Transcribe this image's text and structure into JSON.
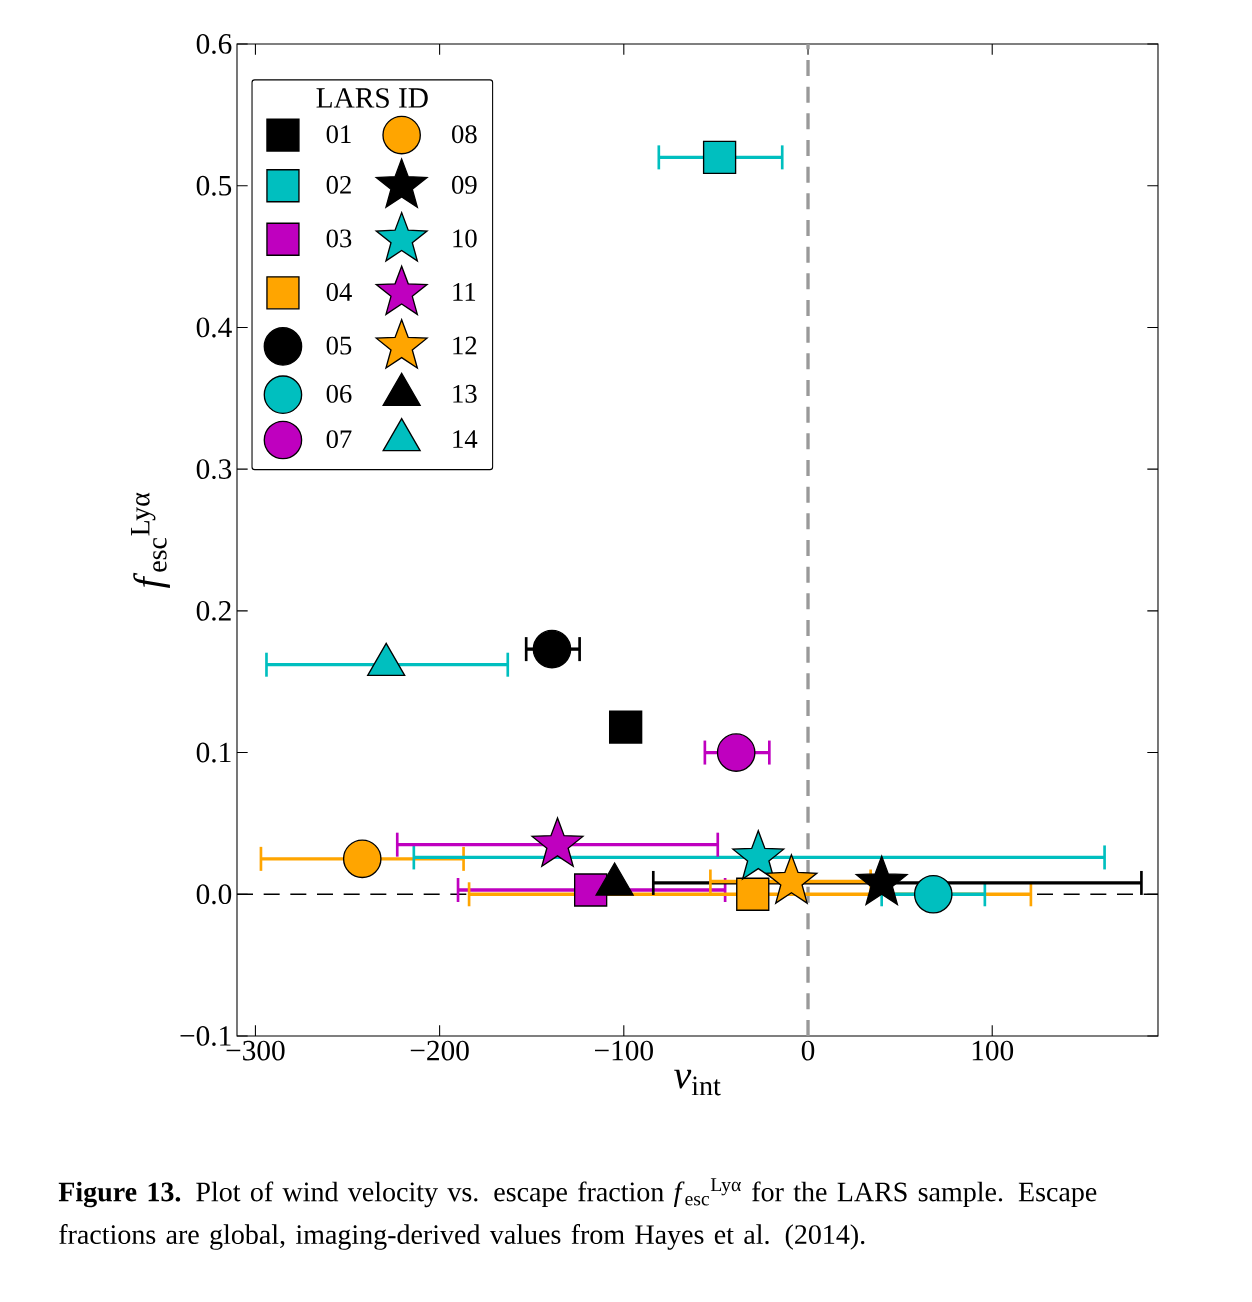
{
  "chart_data": {
    "type": "scatter",
    "xlabel": "*v*$_{int}$",
    "ylabel": "*f*$_{esc}$$^{Lyα}$",
    "legend_title": "LARS ID",
    "legend": "top left",
    "xlim": [
      -310,
      190
    ],
    "ylim": [
      -0.1,
      0.6
    ],
    "xticks": [
      {
        "value": -300,
        "label": "−300"
      },
      {
        "value": -200,
        "label": "−200"
      },
      {
        "value": -100,
        "label": "−100"
      },
      0,
      100
    ],
    "yticks": [
      {
        "value": -0.1,
        "label": "−0.1"
      },
      {
        "value": 0,
        "label": "0.0"
      },
      0.1,
      0.2,
      0.3,
      0.4,
      0.5,
      0.6
    ],
    "ref_lines": [
      {
        "axis": "x",
        "value": 0,
        "color": "#999999",
        "line_style": "dashed"
      },
      {
        "axis": "y",
        "value": 0,
        "color": "#000000",
        "line_style": "dashed"
      }
    ],
    "annotations": [
      "**Figure 13.** Plot of wind velocity vs. escape fraction *f*$_{esc}$$^{Lyα}$ for the LARS sample. Escape fractions are global, imaging-derived values from Hayes et al. (2014)."
    ],
    "series": [
      {
        "name": "01",
        "color": "#000000",
        "marker": "square",
        "x": [
          -99
        ],
        "values": [
          0.118
        ],
        "xerrors": [
          null
        ]
      },
      {
        "name": "02",
        "color": "#00bfbf",
        "marker": "square",
        "x": [
          -48
        ],
        "values": [
          0.52
        ],
        "xerrors": [
          [
            -81,
            -14
          ]
        ]
      },
      {
        "name": "03",
        "color": "#bf00bf",
        "marker": "square",
        "x": [
          -118
        ],
        "values": [
          0.003
        ],
        "xerrors": [
          [
            -190,
            -45
          ]
        ]
      },
      {
        "name": "04",
        "color": "#ffa500",
        "marker": "square",
        "x": [
          -30
        ],
        "values": [
          0.0
        ],
        "xerrors": [
          [
            -184,
            121
          ]
        ]
      },
      {
        "name": "05",
        "color": "#000000",
        "marker": "circle",
        "x": [
          -139
        ],
        "values": [
          0.173
        ],
        "xerrors": [
          [
            -153,
            -124
          ]
        ]
      },
      {
        "name": "06",
        "color": "#00bfbf",
        "marker": "circle",
        "x": [
          68
        ],
        "values": [
          0.0
        ],
        "xerrors": [
          [
            40,
            96
          ]
        ]
      },
      {
        "name": "07",
        "color": "#bf00bf",
        "marker": "circle",
        "x": [
          -39
        ],
        "values": [
          0.1
        ],
        "xerrors": [
          [
            -56,
            -21
          ]
        ]
      },
      {
        "name": "08",
        "color": "#ffa500",
        "marker": "circle",
        "x": [
          -242
        ],
        "values": [
          0.025
        ],
        "xerrors": [
          [
            -297,
            -187
          ]
        ]
      },
      {
        "name": "09",
        "color": "#000000",
        "marker": "star",
        "x": [
          40
        ],
        "values": [
          0.008
        ],
        "xerrors": [
          [
            -84,
            181
          ]
        ]
      },
      {
        "name": "10",
        "color": "#00bfbf",
        "marker": "star",
        "x": [
          -27
        ],
        "values": [
          0.026
        ],
        "xerrors": [
          [
            -214,
            161
          ]
        ]
      },
      {
        "name": "11",
        "color": "#bf00bf",
        "marker": "star",
        "x": [
          -136
        ],
        "values": [
          0.035
        ],
        "xerrors": [
          [
            -223,
            -49
          ]
        ]
      },
      {
        "name": "12",
        "color": "#ffa500",
        "marker": "star",
        "x": [
          -9
        ],
        "values": [
          0.009
        ],
        "xerrors": [
          [
            -53,
            34
          ]
        ]
      },
      {
        "name": "13",
        "color": "#000000",
        "marker": "triangle",
        "x": [
          -105
        ],
        "values": [
          0.007
        ],
        "xerrors": [
          null
        ]
      },
      {
        "name": "14",
        "color": "#00bfbf",
        "marker": "triangle",
        "x": [
          -229
        ],
        "values": [
          0.162
        ],
        "xerrors": [
          [
            -294,
            -163
          ]
        ]
      }
    ]
  }
}
